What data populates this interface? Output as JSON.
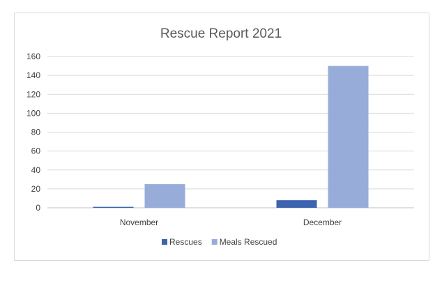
{
  "chart_data": {
    "type": "bar",
    "title": "Rescue Report 2021",
    "categories": [
      "November",
      "December"
    ],
    "series": [
      {
        "name": "Rescues",
        "values": [
          1,
          8
        ],
        "color": "#3c63ad"
      },
      {
        "name": "Meals Rescued",
        "values": [
          25,
          150
        ],
        "color": "#97acd9"
      }
    ],
    "ylim": [
      0,
      160
    ],
    "yticks": [
      0,
      20,
      40,
      60,
      80,
      100,
      120,
      140,
      160
    ],
    "grid": true,
    "legend": "bottom"
  }
}
